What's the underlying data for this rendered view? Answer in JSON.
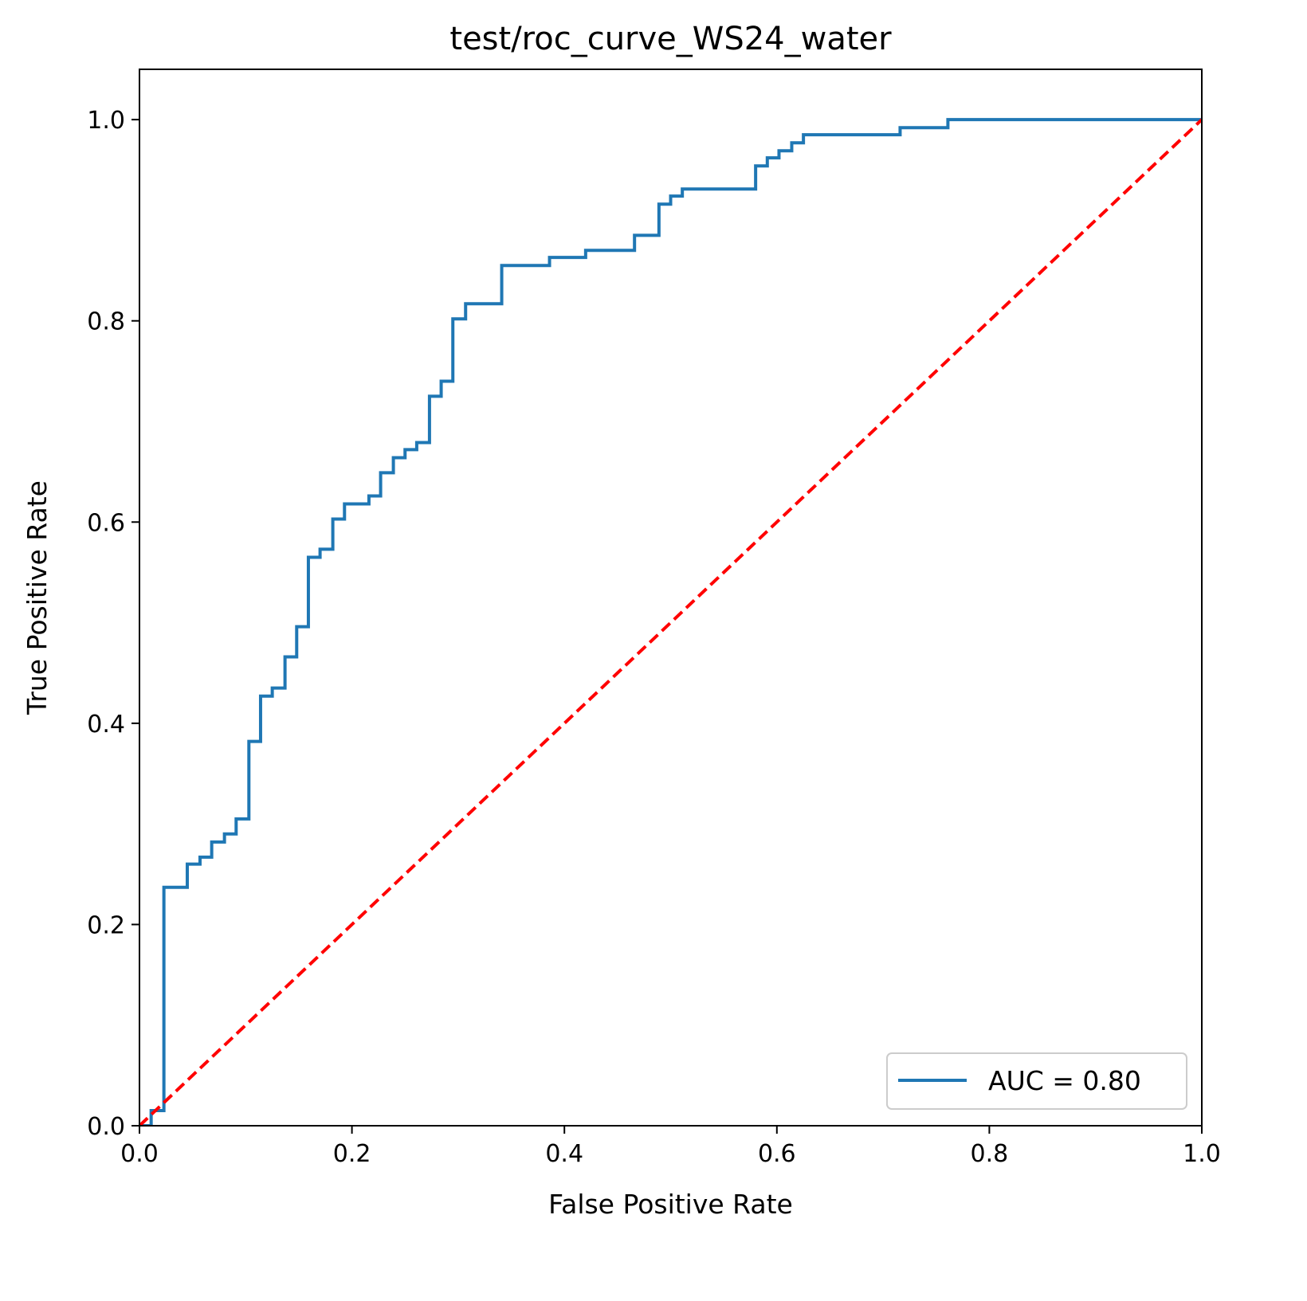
{
  "chart_data": {
    "type": "line",
    "title": "test/roc_curve_WS24_water",
    "xlabel": "False Positive Rate",
    "ylabel": "True Positive Rate",
    "xlim": [
      0.0,
      1.0
    ],
    "ylim": [
      0.0,
      1.05
    ],
    "xticks": [
      "0.0",
      "0.2",
      "0.4",
      "0.6",
      "0.8",
      "1.0"
    ],
    "yticks": [
      "0.0",
      "0.2",
      "0.4",
      "0.6",
      "0.8",
      "1.0"
    ],
    "grid": false,
    "legend_position": "lower-right",
    "series": [
      {
        "name": "AUC = 0.80",
        "color": "#1f77b4",
        "style": "solid-step",
        "x": [
          0.0,
          0.011,
          0.011,
          0.023,
          0.023,
          0.045,
          0.045,
          0.057,
          0.057,
          0.068,
          0.068,
          0.08,
          0.08,
          0.091,
          0.091,
          0.103,
          0.103,
          0.114,
          0.114,
          0.125,
          0.125,
          0.137,
          0.137,
          0.148,
          0.148,
          0.159,
          0.159,
          0.17,
          0.17,
          0.182,
          0.182,
          0.193,
          0.193,
          0.216,
          0.216,
          0.227,
          0.227,
          0.239,
          0.239,
          0.25,
          0.25,
          0.261,
          0.261,
          0.273,
          0.273,
          0.284,
          0.284,
          0.295,
          0.295,
          0.307,
          0.307,
          0.341,
          0.341,
          0.386,
          0.386,
          0.42,
          0.42,
          0.466,
          0.466,
          0.489,
          0.489,
          0.5,
          0.5,
          0.511,
          0.511,
          0.58,
          0.58,
          0.591,
          0.591,
          0.602,
          0.602,
          0.614,
          0.614,
          0.625,
          0.625,
          0.716,
          0.716,
          0.761,
          0.761,
          1.0
        ],
        "y": [
          0.0,
          0.0,
          0.015,
          0.015,
          0.237,
          0.237,
          0.26,
          0.26,
          0.267,
          0.267,
          0.282,
          0.282,
          0.29,
          0.29,
          0.305,
          0.305,
          0.382,
          0.382,
          0.427,
          0.427,
          0.435,
          0.435,
          0.466,
          0.466,
          0.496,
          0.496,
          0.565,
          0.565,
          0.573,
          0.573,
          0.603,
          0.603,
          0.618,
          0.618,
          0.626,
          0.626,
          0.649,
          0.649,
          0.664,
          0.664,
          0.672,
          0.672,
          0.679,
          0.679,
          0.725,
          0.725,
          0.74,
          0.74,
          0.802,
          0.802,
          0.817,
          0.817,
          0.855,
          0.855,
          0.863,
          0.863,
          0.87,
          0.87,
          0.885,
          0.885,
          0.916,
          0.916,
          0.924,
          0.924,
          0.931,
          0.931,
          0.954,
          0.954,
          0.962,
          0.962,
          0.969,
          0.969,
          0.977,
          0.977,
          0.985,
          0.985,
          0.992,
          0.992,
          1.0,
          1.0
        ]
      },
      {
        "color": "#ff0000",
        "style": "dashed",
        "x": [
          0.0,
          1.0
        ],
        "y": [
          0.0,
          1.0
        ]
      }
    ],
    "legend": [
      {
        "label": "AUC = 0.80",
        "color": "#1f77b4"
      }
    ]
  }
}
